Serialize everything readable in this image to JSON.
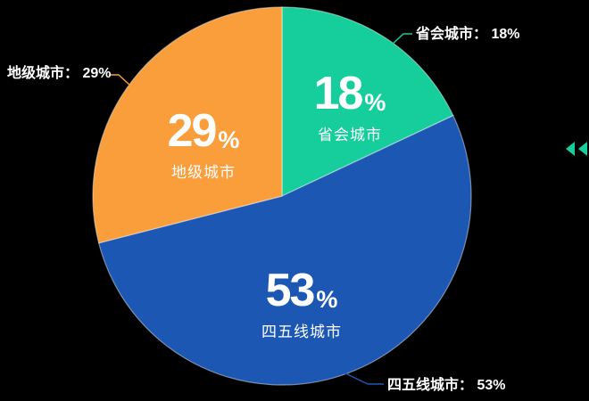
{
  "background_color": "#000000",
  "percent_symbol": "%",
  "chart_data": {
    "type": "pie",
    "title": "",
    "unit": "%",
    "start_angle_deg": 0,
    "clockwise": true,
    "legend_position": "callout-labels",
    "grid": false,
    "slices": [
      {
        "label": "省会城市",
        "value": 18,
        "display_value": "18",
        "callout_text": "省会城市： 18%",
        "color": "#15CE9B"
      },
      {
        "label": "四五线城市",
        "value": 53,
        "display_value": "53",
        "callout_text": "四五线城市： 53%",
        "color": "#1C57B4"
      },
      {
        "label": "地级城市",
        "value": 29,
        "display_value": "29",
        "callout_text": "地级城市： 29%",
        "color": "#FA9D3B"
      }
    ]
  },
  "controls": {
    "collapse_icon_color": "#15CE9B"
  }
}
